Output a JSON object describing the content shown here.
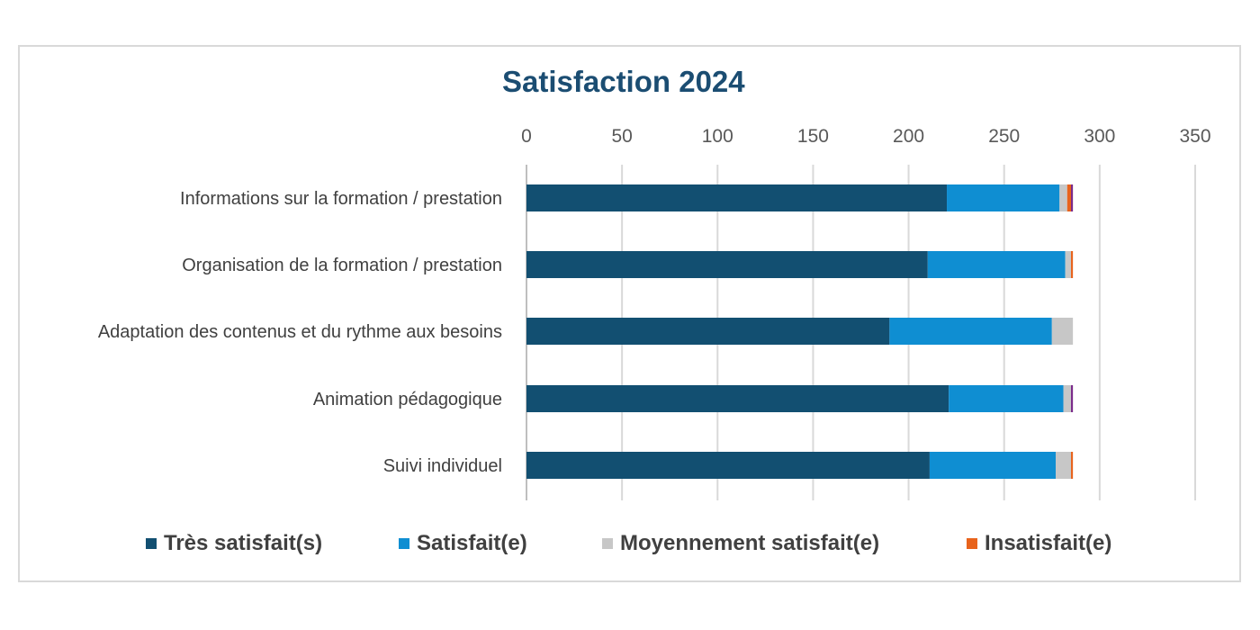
{
  "chart_data": {
    "type": "bar",
    "orientation": "horizontal",
    "stacked": true,
    "title": "Satisfaction 2024",
    "xlim": [
      0,
      350
    ],
    "x_ticks": [
      "0",
      "50",
      "100",
      "150",
      "200",
      "250",
      "300",
      "350"
    ],
    "x_axis_position": "top",
    "grid": "vertical",
    "legend_position": "bottom",
    "categories": [
      "Informations sur la formation / prestation",
      "Organisation de la formation / prestation",
      "Adaptation des contenus et du rythme aux besoins",
      "Animation pédagogique",
      "Suivi individuel"
    ],
    "series": [
      {
        "name": "Très satisfait(s)",
        "color": "#124f71",
        "values": [
          220,
          210,
          190,
          221,
          211
        ]
      },
      {
        "name": "Satisfait(e)",
        "color": "#0f8ed2",
        "values": [
          59,
          72,
          85,
          60,
          66
        ]
      },
      {
        "name": "Moyennement satisfait(e)",
        "color": "#c7c7c7",
        "values": [
          4,
          3,
          11,
          4,
          8
        ]
      },
      {
        "name": "Insatisfait(e)",
        "color": "#e8631c",
        "values": [
          2,
          1,
          0,
          0,
          1
        ]
      }
    ],
    "extra_segment": {
      "color": "#7a2a8a",
      "values": [
        1,
        0,
        0,
        1,
        0
      ]
    }
  }
}
